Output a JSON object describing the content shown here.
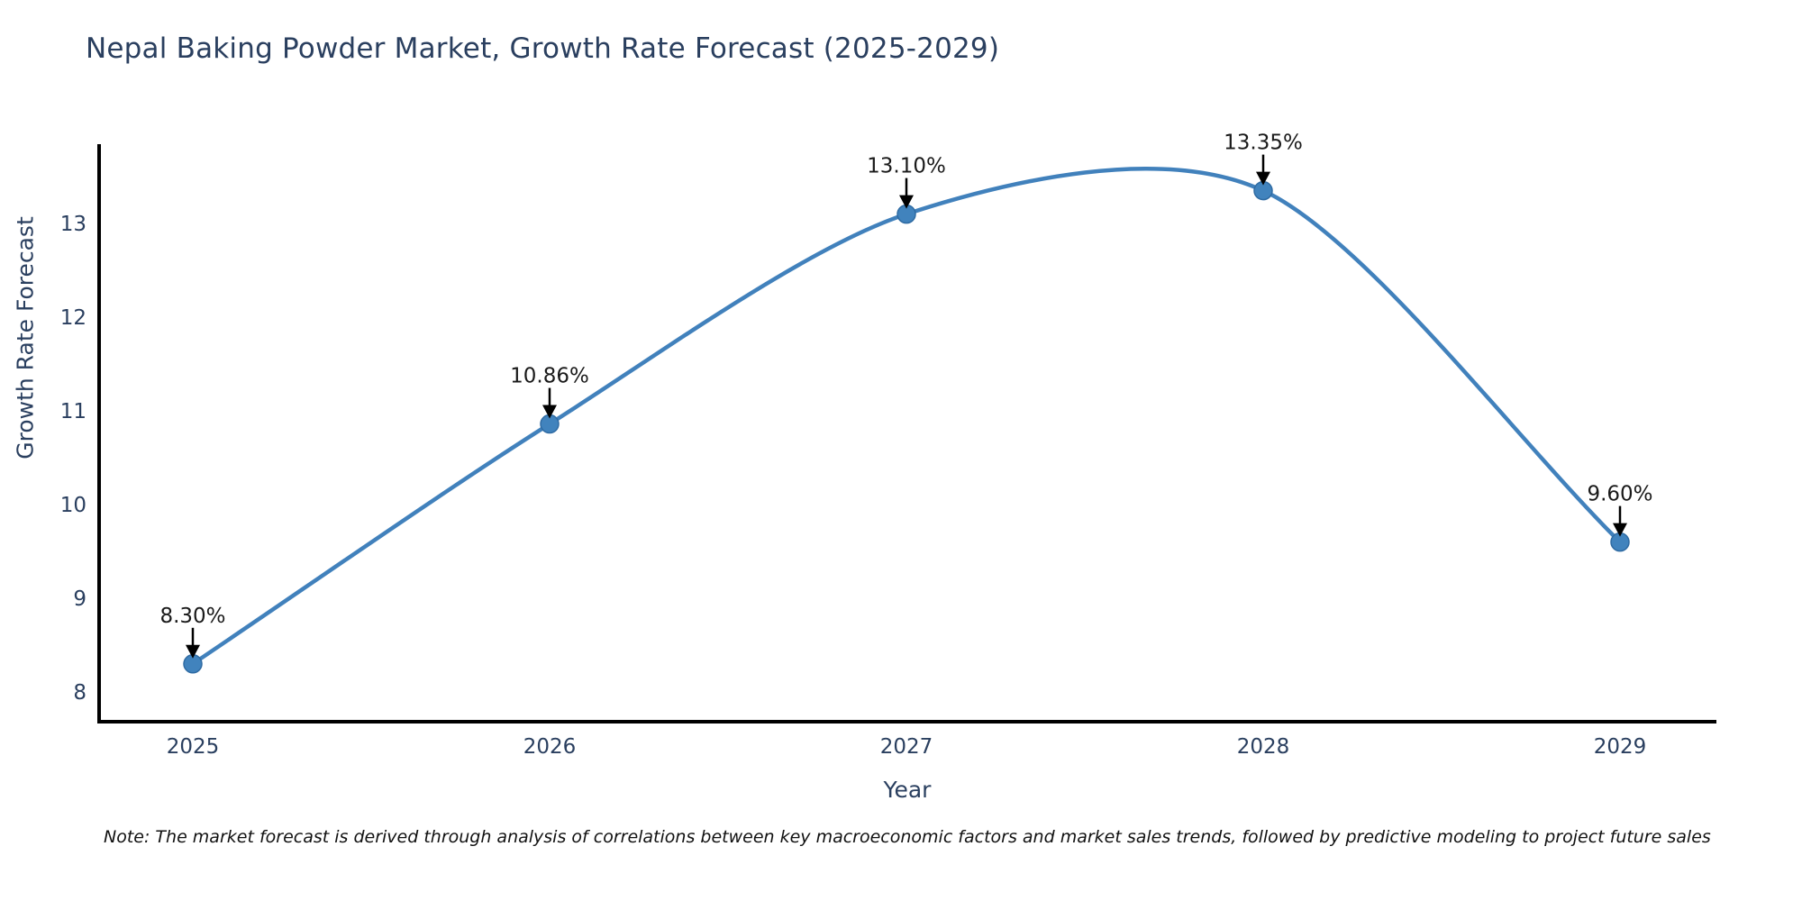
{
  "title": "Nepal Baking Powder Market, Growth Rate Forecast (2025-2029)",
  "note": "Note: The market forecast is derived through analysis of correlations between key macroeconomic factors and market sales trends, followed by predictive modeling to project future sales",
  "chart_data": {
    "type": "line",
    "title": "Nepal Baking Powder Market, Growth Rate Forecast (2025-2029)",
    "xlabel": "Year",
    "ylabel": "Growth Rate Forecast",
    "x": [
      2025,
      2026,
      2027,
      2028,
      2029
    ],
    "values": [
      8.3,
      10.86,
      13.1,
      13.35,
      9.6
    ],
    "point_labels": [
      "8.30%",
      "10.86%",
      "13.10%",
      "13.35%",
      "9.60%"
    ],
    "x_tick_labels": [
      "2025",
      "2026",
      "2027",
      "2028",
      "2029"
    ],
    "y_ticks": [
      8,
      9,
      10,
      11,
      12,
      13
    ],
    "xlim": [
      2024.74,
      2029.27
    ],
    "ylim": [
      7.68,
      13.85
    ],
    "grid": false,
    "legend": "none",
    "smooth": true,
    "annotation_style": "value label with downward arrow to marker",
    "colors": {
      "line": "#4181bc",
      "marker_fill": "#4183bd",
      "marker_edge": "#2f6ba3",
      "axis": "#000000",
      "tick_text": "#2a3f5f",
      "title_text": "#2a3f5f",
      "annotation_text": "#1a1a1a",
      "arrow": "#000000",
      "background": "#ffffff"
    }
  }
}
